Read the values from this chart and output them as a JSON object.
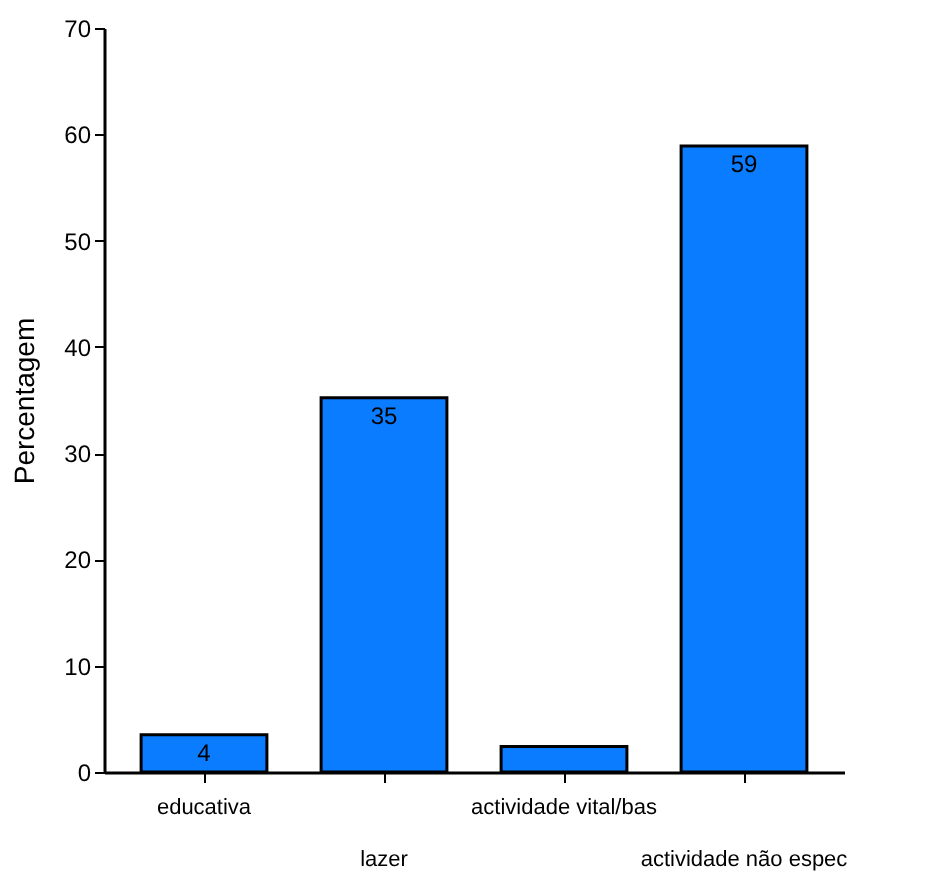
{
  "chart_data": {
    "type": "bar",
    "ylabel": "Percentagem",
    "categories": [
      "educativa",
      "lazer",
      "actividade vital/bas",
      "actividade não espec"
    ],
    "values": [
      3.5,
      35.2,
      2.4,
      58.9
    ],
    "value_labels": [
      "4",
      "35",
      null,
      "59"
    ],
    "color": "#0a7cff",
    "ylim": [
      0,
      70
    ],
    "yticks": [
      0,
      10,
      20,
      30,
      40,
      50,
      60,
      70
    ],
    "grid": false
  }
}
